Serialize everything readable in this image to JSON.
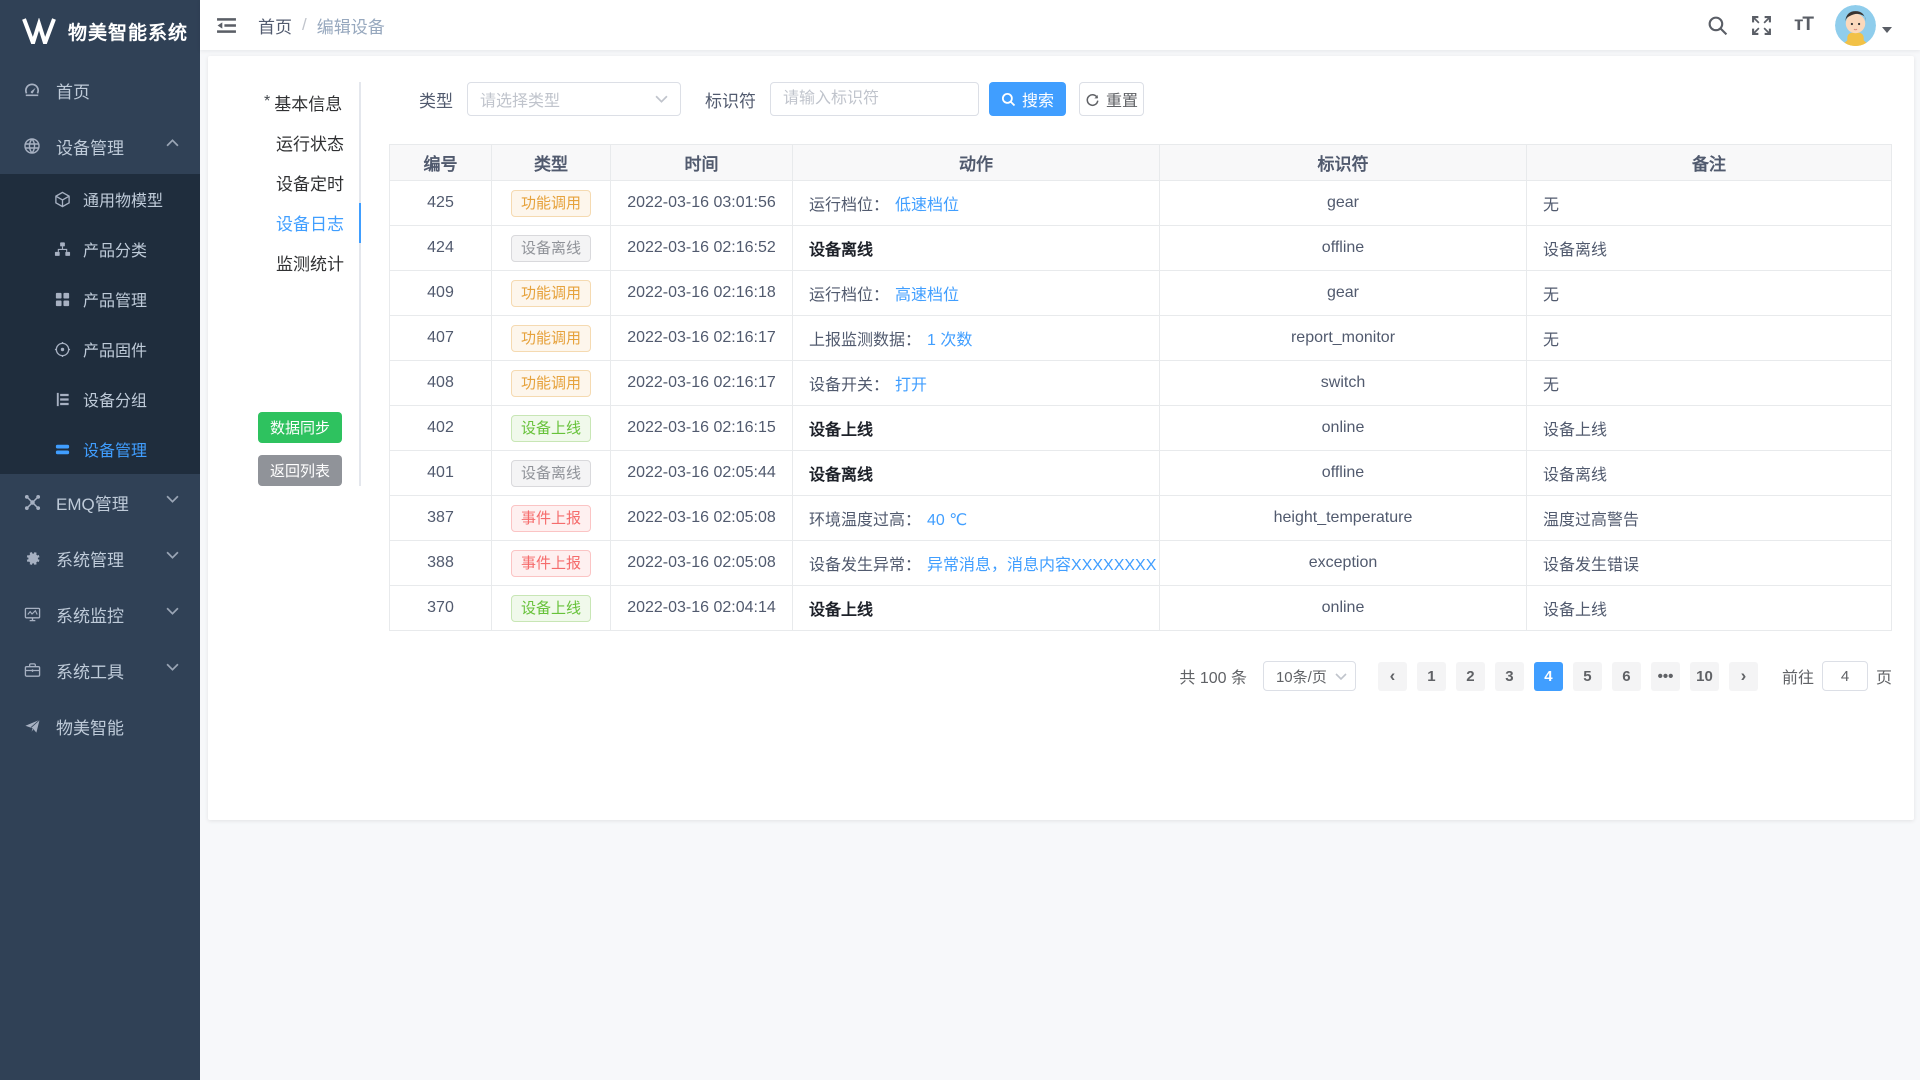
{
  "app": {
    "title": "物美智能系统"
  },
  "sidebar": {
    "items": [
      {
        "label": "首页",
        "icon": "dashboard-icon"
      },
      {
        "label": "设备管理",
        "icon": "device-sphere-icon",
        "chevron": "up",
        "children": [
          {
            "label": "通用物模型",
            "icon": "cube-icon"
          },
          {
            "label": "产品分类",
            "icon": "sitemap-icon"
          },
          {
            "label": "产品管理",
            "icon": "grid-icon"
          },
          {
            "label": "产品固件",
            "icon": "firmware-icon"
          },
          {
            "label": "设备分组",
            "icon": "group-icon"
          },
          {
            "label": "设备管理",
            "icon": "device-list-icon",
            "active": true
          }
        ]
      },
      {
        "label": "EMQ管理",
        "icon": "emq-icon",
        "chevron": "down"
      },
      {
        "label": "系统管理",
        "icon": "gear-icon",
        "chevron": "down"
      },
      {
        "label": "系统监控",
        "icon": "monitor-icon",
        "chevron": "down"
      },
      {
        "label": "系统工具",
        "icon": "toolbox-icon",
        "chevron": "down"
      },
      {
        "label": "物美智能",
        "icon": "paper-plane-icon"
      }
    ]
  },
  "header": {
    "breadcrumb_home": "首页",
    "breadcrumb_sep": "/",
    "breadcrumb_current": "编辑设备"
  },
  "tabs": [
    {
      "label": "基本信息",
      "required": true
    },
    {
      "label": "运行状态"
    },
    {
      "label": "设备定时"
    },
    {
      "label": "设备日志",
      "active": true
    },
    {
      "label": "监测统计"
    }
  ],
  "actions": {
    "sync_label": "数据同步",
    "back_label": "返回列表"
  },
  "filters": {
    "type_label": "类型",
    "type_placeholder": "请选择类型",
    "identifier_label": "标识符",
    "identifier_placeholder": "请输入标识符",
    "search_label": "搜索",
    "reset_label": "重置"
  },
  "table": {
    "columns": [
      "编号",
      "类型",
      "时间",
      "动作",
      "标识符",
      "备注"
    ],
    "rows": [
      {
        "id": "425",
        "type": "功能调用",
        "type_kind": "warning",
        "time": "2022-03-16 03:01:56",
        "action_text": "运行档位：",
        "action_link": "低速档位",
        "action_bold": false,
        "identifier": "gear",
        "remark": "无"
      },
      {
        "id": "424",
        "type": "设备离线",
        "type_kind": "info",
        "time": "2022-03-16 02:16:52",
        "action_text": "设备离线",
        "action_link": "",
        "action_bold": true,
        "identifier": "offline",
        "remark": "设备离线"
      },
      {
        "id": "409",
        "type": "功能调用",
        "type_kind": "warning",
        "time": "2022-03-16 02:16:18",
        "action_text": "运行档位：",
        "action_link": "高速档位",
        "action_bold": false,
        "identifier": "gear",
        "remark": "无"
      },
      {
        "id": "407",
        "type": "功能调用",
        "type_kind": "warning",
        "time": "2022-03-16 02:16:17",
        "action_text": "上报监测数据：",
        "action_link": "1 次数",
        "action_bold": false,
        "identifier": "report_monitor",
        "remark": "无"
      },
      {
        "id": "408",
        "type": "功能调用",
        "type_kind": "warning",
        "time": "2022-03-16 02:16:17",
        "action_text": "设备开关：",
        "action_link": "打开",
        "action_bold": false,
        "identifier": "switch",
        "remark": "无"
      },
      {
        "id": "402",
        "type": "设备上线",
        "type_kind": "success",
        "time": "2022-03-16 02:16:15",
        "action_text": "设备上线",
        "action_link": "",
        "action_bold": true,
        "identifier": "online",
        "remark": "设备上线"
      },
      {
        "id": "401",
        "type": "设备离线",
        "type_kind": "info",
        "time": "2022-03-16 02:05:44",
        "action_text": "设备离线",
        "action_link": "",
        "action_bold": true,
        "identifier": "offline",
        "remark": "设备离线"
      },
      {
        "id": "387",
        "type": "事件上报",
        "type_kind": "danger",
        "time": "2022-03-16 02:05:08",
        "action_text": "环境温度过高：",
        "action_link": "40 ℃",
        "action_bold": false,
        "identifier": "height_temperature",
        "remark": "温度过高警告"
      },
      {
        "id": "388",
        "type": "事件上报",
        "type_kind": "danger",
        "time": "2022-03-16 02:05:08",
        "action_text": "设备发生异常：",
        "action_link": "异常消息，消息内容XXXXXXXX",
        "action_bold": false,
        "identifier": "exception",
        "remark": "设备发生错误"
      },
      {
        "id": "370",
        "type": "设备上线",
        "type_kind": "success",
        "time": "2022-03-16 02:04:14",
        "action_text": "设备上线",
        "action_link": "",
        "action_bold": true,
        "identifier": "online",
        "remark": "设备上线"
      }
    ]
  },
  "pagination": {
    "total_label": "共 100 条",
    "page_size_label": "10条/页",
    "pages": [
      "1",
      "2",
      "3",
      "4",
      "5",
      "6",
      "•••",
      "10"
    ],
    "active_page": "4",
    "goto_label": "前往",
    "goto_value": "4",
    "goto_suffix": "页"
  },
  "colors": {
    "accent": "#409eff",
    "sidebar_bg": "#304156",
    "submenu_bg": "#1f2d3d",
    "success": "#67c23a",
    "warning": "#e6a23c",
    "danger": "#f56c6c",
    "info": "#909399",
    "sync_green": "#2ec25f"
  }
}
